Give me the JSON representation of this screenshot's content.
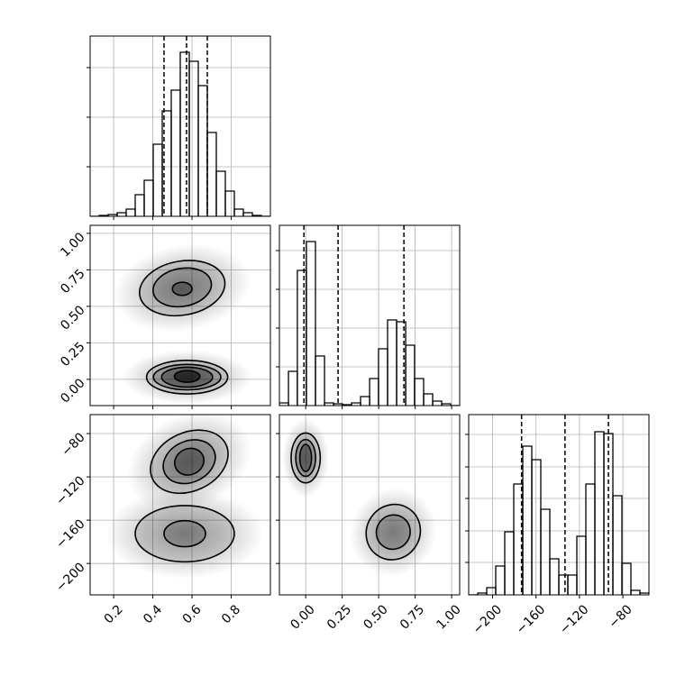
{
  "chart_data": [
    {
      "type": "histogram",
      "xlim": [
        0.08,
        1.0
      ],
      "ylim": [
        0,
        200
      ],
      "xticks": [
        0.2,
        0.4,
        0.6,
        0.8
      ],
      "yticks": [
        55,
        110,
        165
      ],
      "grid": true,
      "bins": [
        0.08,
        0.126,
        0.172,
        0.218,
        0.264,
        0.31,
        0.356,
        0.402,
        0.448,
        0.494,
        0.54,
        0.586,
        0.632,
        0.678,
        0.724,
        0.77,
        0.816,
        0.862,
        0.908,
        0.954,
        1.0
      ],
      "counts": [
        0,
        1,
        2,
        4,
        8,
        24,
        40,
        80,
        117,
        140,
        182,
        172,
        145,
        93,
        50,
        28,
        8,
        4,
        1,
        0
      ],
      "quantiles": [
        0.457,
        0.572,
        0.678
      ],
      "color": "#000000"
    },
    {
      "type": "contour",
      "xlim": [
        0.08,
        1.0
      ],
      "ylim": [
        -0.18,
        1.055
      ],
      "xticks": [
        0.2,
        0.4,
        0.6,
        0.8
      ],
      "yticks": [
        {
          "value": 0,
          "label": "0.00"
        },
        {
          "value": 0.25,
          "label": "0.25"
        },
        {
          "value": 0.5,
          "label": "0.50"
        },
        {
          "value": 0.75,
          "label": "0.75"
        },
        {
          "value": 1.0,
          "label": "1.00"
        }
      ],
      "ytick_labels": true,
      "grid": true,
      "contours": [
        [
          {
            "cx": 0.55,
            "cy": 0.625,
            "rx": 0.22,
            "ry": 0.185,
            "angle": -10
          },
          {
            "cx": 0.55,
            "cy": 0.63,
            "rx": 0.15,
            "ry": 0.13,
            "angle": -10
          },
          {
            "cx": 0.55,
            "cy": 0.62,
            "rx": 0.05,
            "ry": 0.045,
            "angle": 0
          }
        ],
        [
          {
            "cx": 0.575,
            "cy": 0.015,
            "rx": 0.207,
            "ry": 0.115,
            "angle": 0
          },
          {
            "cx": 0.575,
            "cy": 0.015,
            "rx": 0.172,
            "ry": 0.087,
            "angle": 0
          },
          {
            "cx": 0.575,
            "cy": 0.015,
            "rx": 0.13,
            "ry": 0.068,
            "angle": 0
          },
          {
            "cx": 0.575,
            "cy": 0.02,
            "rx": 0.065,
            "ry": 0.04,
            "angle": 0
          }
        ]
      ]
    },
    {
      "type": "histogram",
      "xlim": [
        -0.18,
        1.055
      ],
      "ylim": [
        0,
        200
      ],
      "xticks": [
        0,
        0.25,
        0.5,
        0.75,
        1.0
      ],
      "yticks": [
        43,
        86,
        129,
        172
      ],
      "grid": true,
      "bins": [
        -0.18,
        -0.118,
        -0.057,
        0.005,
        0.067,
        0.129,
        0.191,
        0.252,
        0.314,
        0.376,
        0.438,
        0.499,
        0.561,
        0.623,
        0.685,
        0.746,
        0.808,
        0.87,
        0.932,
        0.993,
        1.055
      ],
      "counts": [
        3,
        38,
        150,
        182,
        55,
        3,
        2,
        1,
        3,
        10,
        30,
        63,
        95,
        93,
        67,
        30,
        13,
        5,
        2,
        0
      ],
      "quantiles": [
        -0.012,
        0.222,
        0.673
      ],
      "color": "#000000"
    },
    {
      "type": "contour",
      "xlim": [
        0.08,
        1.0
      ],
      "ylim": [
        -229,
        -62.5
      ],
      "xticks": [
        0.2,
        0.4,
        0.6,
        0.8
      ],
      "yticks": [
        {
          "value": -80,
          "label": "−80"
        },
        {
          "value": -120,
          "label": "−120"
        },
        {
          "value": -160,
          "label": "−160"
        },
        {
          "value": -200,
          "label": "−200"
        }
      ],
      "xtick_labels": true,
      "ytick_labels": true,
      "grid": true,
      "contours": [
        [
          {
            "cx": 0.586,
            "cy": -106,
            "rx": 0.207,
            "ry": 27,
            "angle": -25
          },
          {
            "cx": 0.586,
            "cy": -106,
            "rx": 0.138,
            "ry": 19,
            "angle": -25
          },
          {
            "cx": 0.586,
            "cy": -106,
            "rx": 0.076,
            "ry": 12,
            "angle": -25
          }
        ],
        [
          {
            "cx": 0.563,
            "cy": -172.5,
            "rx": 0.253,
            "ry": 26,
            "angle": 0
          },
          {
            "cx": 0.563,
            "cy": -172.5,
            "rx": 0.106,
            "ry": 12,
            "angle": 0
          }
        ]
      ]
    },
    {
      "type": "contour",
      "xlim": [
        -0.18,
        1.055
      ],
      "ylim": [
        -229,
        -62.5
      ],
      "xticks": [
        {
          "value": 0,
          "label": "0.00"
        },
        {
          "value": 0.25,
          "label": "0.25"
        },
        {
          "value": 0.5,
          "label": "0.50"
        },
        {
          "value": 0.75,
          "label": "0.75"
        },
        {
          "value": 1.0,
          "label": "1.00"
        }
      ],
      "yticks": [
        -80,
        -120,
        -160,
        -200
      ],
      "xtick_labels": true,
      "grid": true,
      "contours": [
        [
          {
            "cx": 0.0,
            "cy": -102.5,
            "rx": 0.1,
            "ry": 23,
            "angle": 0
          },
          {
            "cx": 0.0,
            "cy": -102.5,
            "rx": 0.068,
            "ry": 17,
            "angle": 0
          },
          {
            "cx": 0.0,
            "cy": -102.5,
            "rx": 0.04,
            "ry": 12.5,
            "angle": 0
          }
        ],
        [
          {
            "cx": 0.6,
            "cy": -171,
            "rx": 0.182,
            "ry": 26,
            "angle": 35
          },
          {
            "cx": 0.6,
            "cy": -171,
            "rx": 0.115,
            "ry": 16,
            "angle": 35
          }
        ]
      ]
    },
    {
      "type": "histogram",
      "xlim": [
        -222,
        -56
      ],
      "ylim": [
        0,
        200
      ],
      "xticks": [
        {
          "value": -200,
          "label": "−200"
        },
        {
          "value": -160,
          "label": "−160"
        },
        {
          "value": -120,
          "label": "−120"
        },
        {
          "value": -80,
          "label": "−80"
        }
      ],
      "yticks": [
        36,
        71,
        107,
        142,
        178
      ],
      "xtick_labels": true,
      "grid": true,
      "bins": [
        -222,
        -213.7,
        -205.4,
        -197.1,
        -188.8,
        -180.5,
        -172.2,
        -163.9,
        -155.6,
        -147.3,
        -139,
        -130.7,
        -122.4,
        -114.1,
        -105.8,
        -97.5,
        -89.2,
        -80.9,
        -72.6,
        -64.3,
        -56
      ],
      "counts": [
        0,
        2,
        8,
        32,
        70,
        123,
        165,
        150,
        95,
        40,
        22,
        22,
        65,
        123,
        181,
        179,
        110,
        35,
        5,
        2
      ],
      "quantiles": [
        -173.3,
        -133.3,
        -93.3
      ],
      "color": "#000000"
    }
  ]
}
